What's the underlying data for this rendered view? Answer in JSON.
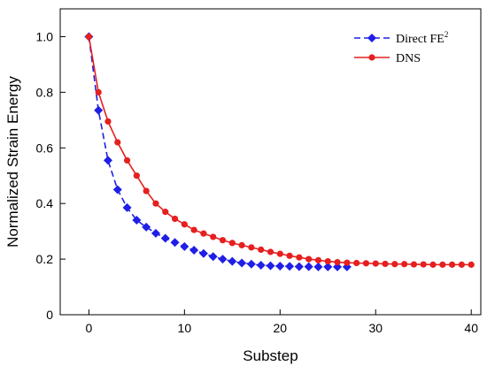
{
  "chart_data": {
    "type": "line",
    "xlabel": "Substep",
    "ylabel": "Normalized Strain Energy",
    "xlim": [
      -3,
      41
    ],
    "ylim": [
      0,
      1.1
    ],
    "xticks": [
      0,
      10,
      20,
      30,
      40
    ],
    "yticks": [
      0,
      0.2,
      0.4,
      0.6,
      0.8,
      1.0
    ],
    "xtick_labels": [
      "0",
      "10",
      "20",
      "30",
      "40"
    ],
    "ytick_labels": [
      "0",
      "0.2",
      "0.4",
      "0.6",
      "0.8",
      "1.0"
    ],
    "grid": false,
    "legend_position": "top-right",
    "series": [
      {
        "name": "Direct FE",
        "name_sup": "2",
        "color": "#1f1fe6",
        "marker": "diamond",
        "line_style": "dashed",
        "x": [
          0,
          1,
          2,
          3,
          4,
          5,
          6,
          7,
          8,
          9,
          10,
          11,
          12,
          13,
          14,
          15,
          16,
          17,
          18,
          19,
          20,
          21,
          22,
          23,
          24,
          25,
          26,
          27
        ],
        "y": [
          1.0,
          0.735,
          0.555,
          0.45,
          0.385,
          0.34,
          0.315,
          0.293,
          0.275,
          0.26,
          0.245,
          0.232,
          0.22,
          0.209,
          0.2,
          0.192,
          0.186,
          0.182,
          0.178,
          0.176,
          0.175,
          0.174,
          0.173,
          0.173,
          0.172,
          0.172,
          0.172,
          0.172
        ]
      },
      {
        "name": "DNS",
        "name_sup": "",
        "color": "#e61f1f",
        "marker": "circle",
        "line_style": "solid",
        "x": [
          0,
          1,
          2,
          3,
          4,
          5,
          6,
          7,
          8,
          9,
          10,
          11,
          12,
          13,
          14,
          15,
          16,
          17,
          18,
          19,
          20,
          21,
          22,
          23,
          24,
          25,
          26,
          27,
          28,
          29,
          30,
          31,
          32,
          33,
          34,
          35,
          36,
          37,
          38,
          39,
          40
        ],
        "y": [
          1.0,
          0.8,
          0.695,
          0.62,
          0.555,
          0.5,
          0.445,
          0.4,
          0.37,
          0.345,
          0.325,
          0.305,
          0.292,
          0.28,
          0.268,
          0.258,
          0.25,
          0.242,
          0.234,
          0.226,
          0.219,
          0.212,
          0.206,
          0.2,
          0.196,
          0.192,
          0.189,
          0.187,
          0.186,
          0.185,
          0.184,
          0.183,
          0.182,
          0.182,
          0.181,
          0.181,
          0.18,
          0.18,
          0.18,
          0.18,
          0.18
        ]
      }
    ]
  }
}
